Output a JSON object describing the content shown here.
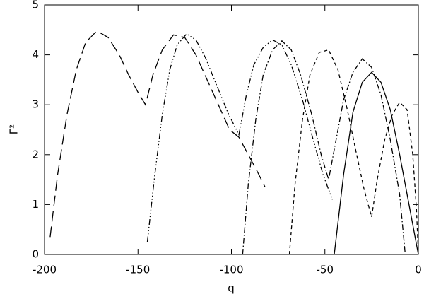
{
  "chart_data": {
    "type": "line",
    "xlabel": "q",
    "ylabel": "Γ²",
    "xlim": [
      -200,
      0
    ],
    "xticks": [
      -200,
      -150,
      -100,
      -50,
      0
    ],
    "ylim": [
      0,
      5
    ],
    "yticks": [
      0,
      1,
      2,
      3,
      4,
      5
    ],
    "series": [
      {
        "color": "#000000",
        "dash": "15,7",
        "x": [
          -197,
          -193,
          -188,
          -183,
          -178,
          -172,
          -166,
          -160,
          -155,
          -150,
          -146,
          -142,
          -137,
          -131,
          -125,
          -119,
          -113,
          -107,
          -101,
          -96,
          -91,
          -86,
          -82
        ],
        "values": [
          0.35,
          1.6,
          2.8,
          3.7,
          4.25,
          4.48,
          4.35,
          4.0,
          3.6,
          3.25,
          3.0,
          3.6,
          4.1,
          4.4,
          4.35,
          4.0,
          3.5,
          3.0,
          2.5,
          2.35,
          2.0,
          1.65,
          1.35
        ]
      },
      {
        "color": "#000000",
        "dash": "8,3,1.5,3,1.5,3,1.5,3",
        "x": [
          -145,
          -141,
          -137,
          -133,
          -129,
          -124,
          -119,
          -114,
          -108,
          -102,
          -96,
          -92,
          -88,
          -83,
          -78,
          -73,
          -68,
          -62,
          -57,
          -51,
          -46
        ],
        "values": [
          0.25,
          1.6,
          2.8,
          3.7,
          4.2,
          4.42,
          4.3,
          3.95,
          3.4,
          2.85,
          2.4,
          3.2,
          3.8,
          4.15,
          4.3,
          4.2,
          3.8,
          3.1,
          2.4,
          1.6,
          1.1
        ]
      },
      {
        "color": "#000000",
        "dash": "8,3,1.5,3",
        "x": [
          -94,
          -91,
          -87,
          -83,
          -78,
          -73,
          -68,
          -63,
          -57,
          -52,
          -48,
          -44,
          -40,
          -35,
          -30,
          -25,
          -20,
          -15,
          -10,
          -7
        ],
        "values": [
          0,
          1.4,
          2.7,
          3.6,
          4.1,
          4.28,
          4.1,
          3.6,
          2.8,
          2.0,
          1.5,
          2.3,
          3.1,
          3.65,
          3.92,
          3.75,
          3.2,
          2.3,
          1.2,
          0
        ]
      },
      {
        "color": "#000000",
        "dash": "5,4",
        "x": [
          -69,
          -66,
          -62,
          -58,
          -53,
          -48,
          -43,
          -38,
          -33,
          -29,
          -25,
          -22,
          -18,
          -14,
          -10,
          -6,
          -3,
          -1,
          0
        ],
        "values": [
          0,
          1.4,
          2.7,
          3.6,
          4.05,
          4.1,
          3.7,
          2.9,
          2.0,
          1.3,
          0.75,
          1.5,
          2.3,
          2.8,
          3.05,
          2.9,
          2.0,
          0.9,
          0
        ]
      },
      {
        "color": "#000000",
        "dash": "none",
        "x": [
          -45,
          -40,
          -35,
          -30,
          -25,
          -20,
          -15,
          -10,
          -5,
          0
        ],
        "values": [
          0,
          1.6,
          2.85,
          3.45,
          3.65,
          3.45,
          2.9,
          2.0,
          1.0,
          0
        ]
      }
    ]
  }
}
